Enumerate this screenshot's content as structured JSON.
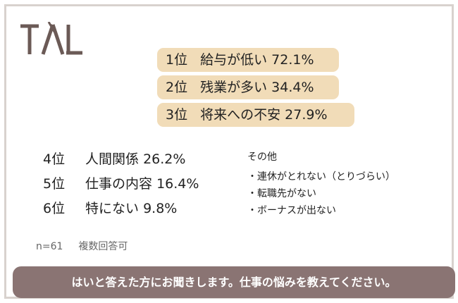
{
  "logo_text": "TAL",
  "top_ranks": [
    {
      "rank": "1位",
      "label": "給与が低い",
      "value": "72.1%"
    },
    {
      "rank": "2位",
      "label": "残業が多い",
      "value": "34.4%"
    },
    {
      "rank": "3位",
      "label": "将来への不安",
      "value": "27.9%"
    }
  ],
  "other_ranks": [
    {
      "rank": "4位",
      "label": "人間関係",
      "value": "26.2%"
    },
    {
      "rank": "5位",
      "label": "仕事の内容",
      "value": "16.4%"
    },
    {
      "rank": "6位",
      "label": "特にない",
      "value": "9.8%"
    }
  ],
  "other_section": {
    "title": "その他",
    "items": [
      "・連休がとれない（とりづらい）",
      "・転職先がない",
      "・ボーナスが出ない"
    ]
  },
  "note": {
    "n": "n=61",
    "type": "複数回答可"
  },
  "banner": "はいと答えた方にお聞きします。仕事の悩みを教えてください。",
  "colors": {
    "pill": "#f1dcb8",
    "banner": "#8a7473",
    "logo": "#6b5a56",
    "border": "#d8d2ce"
  }
}
